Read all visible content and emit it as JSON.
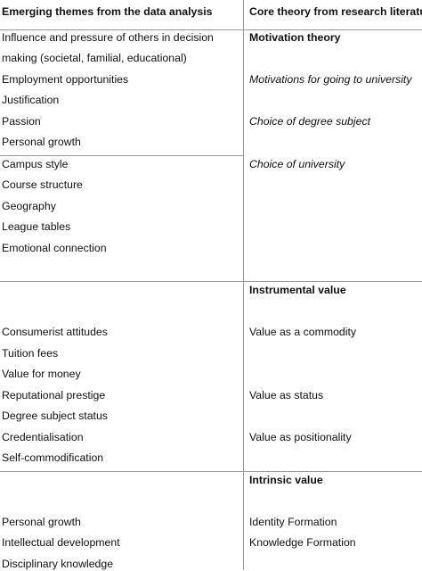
{
  "header": {
    "left": "Emerging themes from the data analysis",
    "right": "Core theory from research literature"
  },
  "section1": {
    "heading": "Motivation theory",
    "themes": [
      "Influence and pressure of others in decision",
      "making (societal, familial, educational)",
      "Employment opportunities",
      "Justification",
      "Passion",
      "Personal growth",
      "Campus style",
      "Course structure",
      "Geography",
      "League tables",
      "Emotional connection"
    ],
    "theory": [
      "Motivations for going to university",
      "Choice of degree subject",
      "Choice of university"
    ]
  },
  "section2": {
    "heading": "Instrumental value",
    "themes": [
      "Consumerist attitudes",
      "Tuition fees",
      "Value for money",
      "Reputational prestige",
      "Degree subject status",
      "Credentialisation",
      "Self-commodification"
    ],
    "theory": [
      "Value as a commodity",
      "Value as status",
      "Value as positionality"
    ]
  },
  "section3": {
    "heading": "Intrinsic value",
    "themes": [
      "Personal growth",
      "Intellectual development",
      "Disciplinary knowledge"
    ],
    "theory": [
      "Identity Formation",
      "Knowledge Formation"
    ]
  }
}
